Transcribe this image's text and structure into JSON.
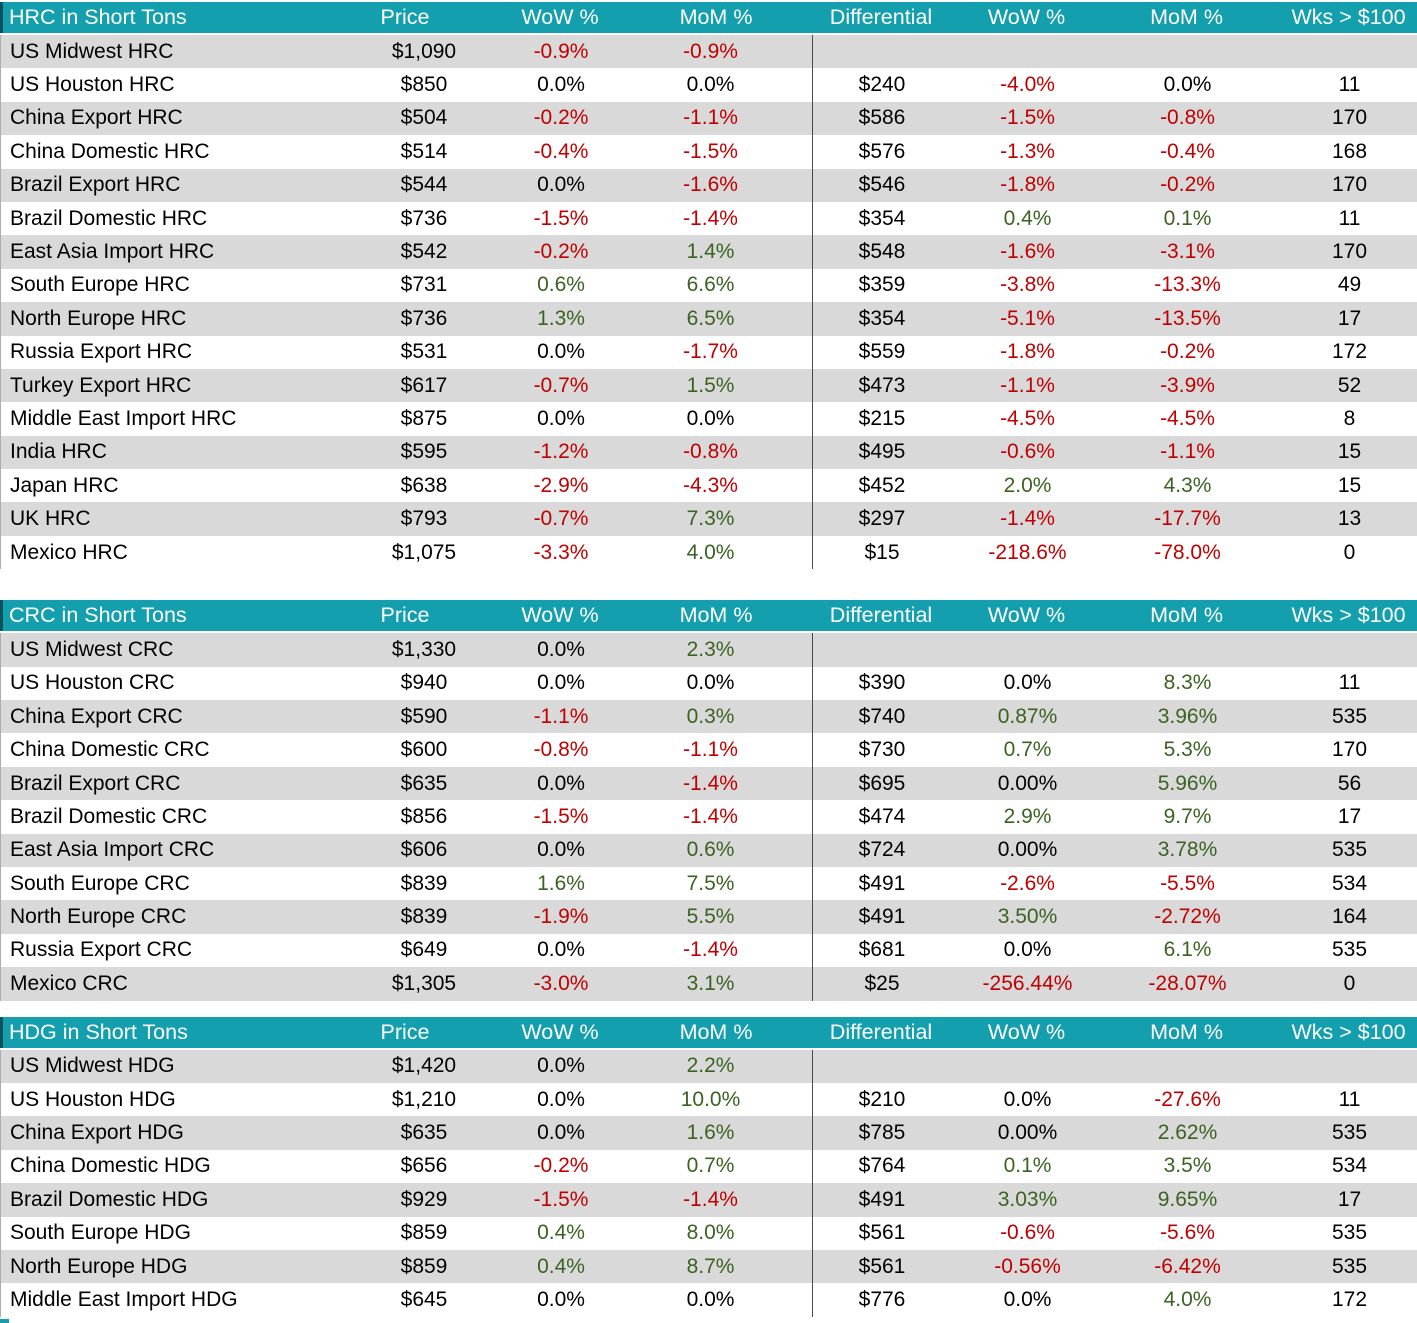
{
  "colors": {
    "header_bg": "#149FAF",
    "header_text": "#FFFFFF",
    "row_alt": "#D9D9D9",
    "negative": "#C00000",
    "positive": "#3C6222",
    "neutral": "#000000",
    "divider": "#4A4A4A",
    "dark_edge": "#0A525C"
  },
  "columns": [
    "Price",
    "WoW %",
    "MoM %",
    "Differential",
    "WoW %",
    "MoM %",
    "Wks > $100"
  ],
  "sections": [
    {
      "title": "HRC in Short Tons",
      "rows": [
        {
          "label": "US Midwest HRC",
          "price": "$1,090",
          "wow1": "-0.9%",
          "mom1": "-0.9%",
          "diff": "",
          "wow2": "",
          "mom2": "",
          "wks": ""
        },
        {
          "label": "US Houston HRC",
          "price": "$850",
          "wow1": "0.0%",
          "mom1": "0.0%",
          "diff": "$240",
          "wow2": "-4.0%",
          "mom2": "0.0%",
          "wks": "11"
        },
        {
          "label": "China Export HRC",
          "price": "$504",
          "wow1": "-0.2%",
          "mom1": "-1.1%",
          "diff": "$586",
          "wow2": "-1.5%",
          "mom2": "-0.8%",
          "wks": "170"
        },
        {
          "label": "China Domestic HRC",
          "price": "$514",
          "wow1": "-0.4%",
          "mom1": "-1.5%",
          "diff": "$576",
          "wow2": "-1.3%",
          "mom2": "-0.4%",
          "wks": "168"
        },
        {
          "label": "Brazil Export HRC",
          "price": "$544",
          "wow1": "0.0%",
          "mom1": "-1.6%",
          "diff": "$546",
          "wow2": "-1.8%",
          "mom2": "-0.2%",
          "wks": "170"
        },
        {
          "label": "Brazil Domestic HRC",
          "price": "$736",
          "wow1": "-1.5%",
          "mom1": "-1.4%",
          "diff": "$354",
          "wow2": "0.4%",
          "mom2": "0.1%",
          "wks": "11"
        },
        {
          "label": "East Asia Import HRC",
          "price": "$542",
          "wow1": "-0.2%",
          "mom1": "1.4%",
          "diff": "$548",
          "wow2": "-1.6%",
          "mom2": "-3.1%",
          "wks": "170"
        },
        {
          "label": "South Europe HRC",
          "price": "$731",
          "wow1": "0.6%",
          "mom1": "6.6%",
          "diff": "$359",
          "wow2": "-3.8%",
          "mom2": "-13.3%",
          "wks": "49"
        },
        {
          "label": "North Europe HRC",
          "price": "$736",
          "wow1": "1.3%",
          "mom1": "6.5%",
          "diff": "$354",
          "wow2": "-5.1%",
          "mom2": "-13.5%",
          "wks": "17"
        },
        {
          "label": "Russia Export HRC",
          "price": "$531",
          "wow1": "0.0%",
          "mom1": "-1.7%",
          "diff": "$559",
          "wow2": "-1.8%",
          "mom2": "-0.2%",
          "wks": "172"
        },
        {
          "label": "Turkey Export HRC",
          "price": "$617",
          "wow1": "-0.7%",
          "mom1": "1.5%",
          "diff": "$473",
          "wow2": "-1.1%",
          "mom2": "-3.9%",
          "wks": "52"
        },
        {
          "label": "Middle East Import HRC",
          "price": "$875",
          "wow1": "0.0%",
          "mom1": "0.0%",
          "diff": "$215",
          "wow2": "-4.5%",
          "mom2": "-4.5%",
          "wks": "8"
        },
        {
          "label": "India HRC",
          "price": "$595",
          "wow1": "-1.2%",
          "mom1": "-0.8%",
          "diff": "$495",
          "wow2": "-0.6%",
          "mom2": "-1.1%",
          "wks": "15"
        },
        {
          "label": "Japan HRC",
          "price": "$638",
          "wow1": "-2.9%",
          "mom1": "-4.3%",
          "diff": "$452",
          "wow2": "2.0%",
          "mom2": "4.3%",
          "wks": "15"
        },
        {
          "label": "UK HRC",
          "price": "$793",
          "wow1": "-0.7%",
          "mom1": "7.3%",
          "diff": "$297",
          "wow2": "-1.4%",
          "mom2": "-17.7%",
          "wks": "13"
        },
        {
          "label": "Mexico HRC",
          "price": "$1,075",
          "wow1": "-3.3%",
          "mom1": "4.0%",
          "diff": "$15",
          "wow2": "-218.6%",
          "mom2": "-78.0%",
          "wks": "0"
        }
      ]
    },
    {
      "title": "CRC in Short Tons",
      "rows": [
        {
          "label": "US Midwest CRC",
          "price": "$1,330",
          "wow1": "0.0%",
          "mom1": "2.3%",
          "diff": "",
          "wow2": "",
          "mom2": "",
          "wks": ""
        },
        {
          "label": "US Houston CRC",
          "price": "$940",
          "wow1": "0.0%",
          "mom1": "0.0%",
          "diff": "$390",
          "wow2": "0.0%",
          "mom2": "8.3%",
          "wks": "11"
        },
        {
          "label": "China Export CRC",
          "price": "$590",
          "wow1": "-1.1%",
          "mom1": "0.3%",
          "diff": "$740",
          "wow2": "0.87%",
          "mom2": "3.96%",
          "wks": "535"
        },
        {
          "label": "China Domestic CRC",
          "price": "$600",
          "wow1": "-0.8%",
          "mom1": "-1.1%",
          "diff": "$730",
          "wow2": "0.7%",
          "mom2": "5.3%",
          "wks": "170"
        },
        {
          "label": "Brazil Export CRC",
          "price": "$635",
          "wow1": "0.0%",
          "mom1": "-1.4%",
          "diff": "$695",
          "wow2": "0.00%",
          "mom2": "5.96%",
          "wks": "56"
        },
        {
          "label": "Brazil Domestic CRC",
          "price": "$856",
          "wow1": "-1.5%",
          "mom1": "-1.4%",
          "diff": "$474",
          "wow2": "2.9%",
          "mom2": "9.7%",
          "wks": "17"
        },
        {
          "label": "East Asia Import CRC",
          "price": "$606",
          "wow1": "0.0%",
          "mom1": "0.6%",
          "diff": "$724",
          "wow2": "0.00%",
          "mom2": "3.78%",
          "wks": "535"
        },
        {
          "label": "South Europe CRC",
          "price": "$839",
          "wow1": "1.6%",
          "mom1": "7.5%",
          "diff": "$491",
          "wow2": "-2.6%",
          "mom2": "-5.5%",
          "wks": "534"
        },
        {
          "label": "North Europe CRC",
          "price": "$839",
          "wow1": "-1.9%",
          "mom1": "5.5%",
          "diff": "$491",
          "wow2": "3.50%",
          "mom2": "-2.72%",
          "wks": "164"
        },
        {
          "label": "Russia Export CRC",
          "price": "$649",
          "wow1": "0.0%",
          "mom1": "-1.4%",
          "diff": "$681",
          "wow2": "0.0%",
          "mom2": "6.1%",
          "wks": "535"
        },
        {
          "label": "Mexico CRC",
          "price": "$1,305",
          "wow1": "-3.0%",
          "mom1": "3.1%",
          "diff": "$25",
          "wow2": "-256.44%",
          "mom2": "-28.07%",
          "wks": "0"
        }
      ]
    },
    {
      "title": "HDG in Short Tons",
      "rows": [
        {
          "label": "US Midwest HDG",
          "price": "$1,420",
          "wow1": "0.0%",
          "mom1": "2.2%",
          "diff": "",
          "wow2": "",
          "mom2": "",
          "wks": ""
        },
        {
          "label": "US Houston HDG",
          "price": "$1,210",
          "wow1": "0.0%",
          "mom1": "10.0%",
          "diff": "$210",
          "wow2": "0.0%",
          "mom2": "-27.6%",
          "wks": "11"
        },
        {
          "label": "China Export HDG",
          "price": "$635",
          "wow1": "0.0%",
          "mom1": "1.6%",
          "diff": "$785",
          "wow2": "0.00%",
          "mom2": "2.62%",
          "wks": "535"
        },
        {
          "label": "China Domestic HDG",
          "price": "$656",
          "wow1": "-0.2%",
          "mom1": "0.7%",
          "diff": "$764",
          "wow2": "0.1%",
          "mom2": "3.5%",
          "wks": "534"
        },
        {
          "label": "Brazil Domestic HDG",
          "price": "$929",
          "wow1": "-1.5%",
          "mom1": "-1.4%",
          "diff": "$491",
          "wow2": "3.03%",
          "mom2": "9.65%",
          "wks": "17"
        },
        {
          "label": "South Europe HDG",
          "price": "$859",
          "wow1": "0.4%",
          "mom1": "8.0%",
          "diff": "$561",
          "wow2": "-0.6%",
          "mom2": "-5.6%",
          "wks": "535"
        },
        {
          "label": "North Europe HDG",
          "price": "$859",
          "wow1": "0.4%",
          "mom1": "8.7%",
          "diff": "$561",
          "wow2": "-0.56%",
          "mom2": "-6.42%",
          "wks": "535"
        },
        {
          "label": "Middle East Import HDG",
          "price": "$645",
          "wow1": "0.0%",
          "mom1": "0.0%",
          "diff": "$776",
          "wow2": "0.0%",
          "mom2": "4.0%",
          "wks": "172"
        }
      ]
    }
  ]
}
